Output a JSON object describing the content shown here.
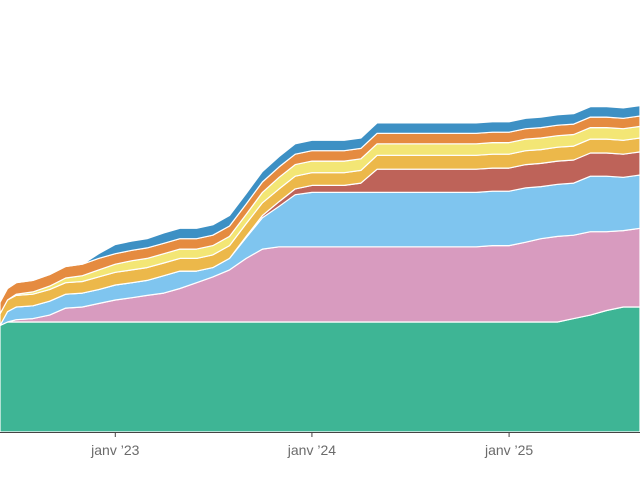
{
  "chart_data": {
    "type": "area",
    "stacked": true,
    "x_type": "date",
    "xlim": [
      "2022-06-01",
      "2025-09-01"
    ],
    "ylim": [
      0,
      330
    ],
    "grid": false,
    "legend": "none",
    "x_ticks": [
      {
        "date": "2023-01-01",
        "label": "janv ’23"
      },
      {
        "date": "2024-01-01",
        "label": "janv ’24"
      },
      {
        "date": "2025-01-01",
        "label": "janv ’25"
      }
    ],
    "x": [
      "2022-06-01",
      "2022-06-15",
      "2022-07-01",
      "2022-08-01",
      "2022-09-01",
      "2022-10-01",
      "2022-11-01",
      "2022-12-01",
      "2023-01-01",
      "2023-02-01",
      "2023-03-01",
      "2023-04-01",
      "2023-05-01",
      "2023-06-01",
      "2023-07-01",
      "2023-08-01",
      "2023-09-01",
      "2023-10-01",
      "2023-11-01",
      "2023-12-01",
      "2024-01-01",
      "2024-02-01",
      "2024-03-01",
      "2024-04-01",
      "2024-05-01",
      "2024-06-01",
      "2024-07-01",
      "2024-08-01",
      "2024-09-01",
      "2024-10-01",
      "2024-11-01",
      "2024-12-01",
      "2025-01-01",
      "2025-02-01",
      "2025-03-01",
      "2025-04-01",
      "2025-05-01",
      "2025-06-01",
      "2025-07-01",
      "2025-08-01",
      "2025-09-01"
    ],
    "series": [
      {
        "color": "#3eb595",
        "values": [
          92,
          95,
          95,
          95,
          95,
          95,
          95,
          95,
          95,
          95,
          95,
          95,
          95,
          95,
          95,
          95,
          95,
          95,
          95,
          95,
          95,
          95,
          95,
          95,
          95,
          95,
          95,
          95,
          95,
          95,
          95,
          95,
          95,
          95,
          95,
          95,
          98,
          101,
          105,
          108,
          108
        ]
      },
      {
        "color": "#d89bbf",
        "values": [
          0,
          0,
          2,
          3,
          6,
          12,
          13,
          16,
          19,
          21,
          23,
          25,
          29,
          34,
          39,
          45,
          55,
          63,
          65,
          65,
          65,
          65,
          65,
          65,
          65,
          65,
          65,
          65,
          65,
          65,
          65,
          66,
          66,
          69,
          72,
          74,
          72,
          72,
          68,
          66,
          68
        ]
      },
      {
        "color": "#7fc5ef",
        "values": [
          0,
          9,
          11,
          11,
          12,
          12,
          12,
          12,
          13,
          13,
          13,
          15,
          15,
          10,
          8,
          10,
          18,
          27,
          35,
          45,
          47,
          47,
          47,
          47,
          47,
          47,
          47,
          47,
          47,
          47,
          47,
          47,
          47,
          47,
          45,
          45,
          45,
          48,
          48,
          46,
          46
        ]
      },
      {
        "color": "#be6359",
        "values": [
          0,
          0,
          0,
          0,
          0,
          0,
          0,
          0,
          0,
          0,
          0,
          0,
          0,
          0,
          0,
          0,
          1,
          2,
          4,
          5,
          6,
          6,
          6,
          8,
          20,
          20,
          20,
          20,
          20,
          20,
          20,
          20,
          20,
          20,
          20,
          20,
          20,
          20,
          20,
          20,
          20
        ]
      },
      {
        "color": "#ecb84a",
        "values": [
          10,
          10,
          10,
          10,
          10,
          10,
          10,
          11,
          11,
          11,
          11,
          11,
          11,
          11,
          11,
          11,
          11,
          11,
          11,
          11,
          11,
          11,
          11,
          11,
          12,
          12,
          12,
          12,
          12,
          12,
          12,
          12,
          12,
          12,
          12,
          12,
          12,
          12,
          12,
          12,
          12
        ]
      },
      {
        "color": "#f3e675",
        "values": [
          0,
          0,
          1,
          2,
          3,
          4,
          5,
          6,
          7,
          8,
          8,
          8,
          8,
          8,
          8,
          8,
          8,
          9,
          10,
          10,
          10,
          10,
          10,
          10,
          10,
          10,
          10,
          10,
          10,
          10,
          10,
          10,
          10,
          10,
          10,
          10,
          10,
          10,
          10,
          10,
          10
        ]
      },
      {
        "color": "#e58b40",
        "values": [
          10,
          10,
          10,
          10,
          10,
          10,
          10,
          10,
          9,
          9,
          9,
          9,
          9,
          9,
          9,
          9,
          9,
          9,
          9,
          9,
          9,
          9,
          9,
          9,
          9,
          9,
          9,
          9,
          9,
          9,
          9,
          9,
          9,
          9,
          9,
          9,
          9,
          9,
          9,
          9,
          9
        ]
      },
      {
        "color": "#3d90c4",
        "values": [
          0,
          0,
          0,
          0,
          0,
          0,
          0,
          4,
          8,
          8,
          8,
          9,
          9,
          9,
          9,
          9,
          9,
          9,
          9,
          9,
          9,
          9,
          9,
          9,
          9,
          9,
          9,
          9,
          9,
          9,
          9,
          9,
          9,
          9,
          9,
          9,
          9,
          9,
          9,
          9,
          9
        ]
      }
    ]
  }
}
